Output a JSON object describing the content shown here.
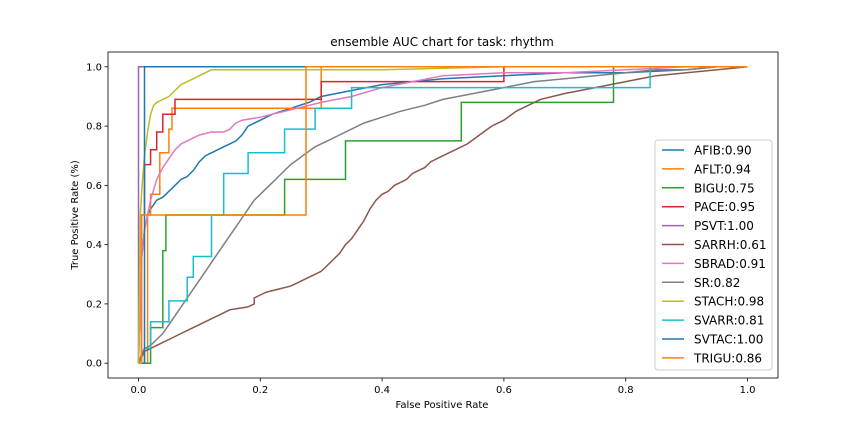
{
  "chart_data": {
    "type": "line",
    "title": "ensemble AUC chart for task: rhythm",
    "xlabel": "False Positive Rate",
    "ylabel": "True Positive Rate (%)",
    "xlim": [
      -0.05,
      1.05
    ],
    "ylim": [
      -0.05,
      1.05
    ],
    "xticks": [
      "0.0",
      "0.2",
      "0.4",
      "0.6",
      "0.8",
      "1.0"
    ],
    "yticks": [
      "0.0",
      "0.2",
      "0.4",
      "0.6",
      "0.8",
      "1.0"
    ],
    "grid": false,
    "legend_position": "lower right",
    "series": [
      {
        "name": "AFIB:0.90",
        "color": "#1f77b4",
        "points": [
          [
            0,
            0
          ],
          [
            0.005,
            0.35
          ],
          [
            0.01,
            0.45
          ],
          [
            0.015,
            0.5
          ],
          [
            0.02,
            0.52
          ],
          [
            0.03,
            0.55
          ],
          [
            0.04,
            0.56
          ],
          [
            0.05,
            0.58
          ],
          [
            0.06,
            0.6
          ],
          [
            0.07,
            0.62
          ],
          [
            0.08,
            0.63
          ],
          [
            0.09,
            0.65
          ],
          [
            0.1,
            0.68
          ],
          [
            0.11,
            0.7
          ],
          [
            0.12,
            0.71
          ],
          [
            0.13,
            0.72
          ],
          [
            0.14,
            0.73
          ],
          [
            0.15,
            0.74
          ],
          [
            0.16,
            0.75
          ],
          [
            0.17,
            0.77
          ],
          [
            0.18,
            0.8
          ],
          [
            0.2,
            0.82
          ],
          [
            0.22,
            0.84
          ],
          [
            0.25,
            0.86
          ],
          [
            0.28,
            0.88
          ],
          [
            0.3,
            0.9
          ],
          [
            0.35,
            0.92
          ],
          [
            0.4,
            0.94
          ],
          [
            0.5,
            0.96
          ],
          [
            0.6,
            0.97
          ],
          [
            0.7,
            0.98
          ],
          [
            0.8,
            0.98
          ],
          [
            0.9,
            0.99
          ],
          [
            0.95,
            1.0
          ],
          [
            1.0,
            1.0
          ]
        ]
      },
      {
        "name": "AFLT:0.94",
        "color": "#ff7f0e",
        "points": [
          [
            0,
            0
          ],
          [
            0.015,
            0.0
          ],
          [
            0.015,
            0.5
          ],
          [
            0.02,
            0.5
          ],
          [
            0.02,
            0.57
          ],
          [
            0.035,
            0.57
          ],
          [
            0.035,
            0.71
          ],
          [
            0.05,
            0.71
          ],
          [
            0.05,
            0.79
          ],
          [
            0.055,
            0.79
          ],
          [
            0.055,
            0.86
          ],
          [
            0.3,
            0.86
          ],
          [
            0.3,
            1.0
          ],
          [
            1.0,
            1.0
          ]
        ]
      },
      {
        "name": "BIGU:0.75",
        "color": "#2ca02c",
        "points": [
          [
            0,
            0
          ],
          [
            0.02,
            0.0
          ],
          [
            0.02,
            0.12
          ],
          [
            0.04,
            0.12
          ],
          [
            0.04,
            0.38
          ],
          [
            0.045,
            0.38
          ],
          [
            0.045,
            0.5
          ],
          [
            0.24,
            0.5
          ],
          [
            0.24,
            0.62
          ],
          [
            0.34,
            0.62
          ],
          [
            0.34,
            0.75
          ],
          [
            0.53,
            0.75
          ],
          [
            0.53,
            0.88
          ],
          [
            0.78,
            0.88
          ],
          [
            0.78,
            1.0
          ],
          [
            1.0,
            1.0
          ]
        ]
      },
      {
        "name": "PACE:0.95",
        "color": "#d62728",
        "points": [
          [
            0,
            0
          ],
          [
            0.005,
            0.0
          ],
          [
            0.005,
            0.5
          ],
          [
            0.01,
            0.5
          ],
          [
            0.01,
            0.67
          ],
          [
            0.02,
            0.67
          ],
          [
            0.02,
            0.72
          ],
          [
            0.03,
            0.72
          ],
          [
            0.03,
            0.78
          ],
          [
            0.04,
            0.78
          ],
          [
            0.04,
            0.84
          ],
          [
            0.06,
            0.84
          ],
          [
            0.06,
            0.89
          ],
          [
            0.3,
            0.89
          ],
          [
            0.3,
            0.95
          ],
          [
            0.6,
            0.95
          ],
          [
            0.6,
            1.0
          ],
          [
            1.0,
            1.0
          ]
        ]
      },
      {
        "name": "PSVT:1.00",
        "color": "#9467bd",
        "points": [
          [
            0,
            0
          ],
          [
            0,
            1.0
          ],
          [
            1.0,
            1.0
          ]
        ]
      },
      {
        "name": "SARRH:0.61",
        "color": "#8c564b",
        "points": [
          [
            0,
            0
          ],
          [
            0.005,
            0.02
          ],
          [
            0.01,
            0.04
          ],
          [
            0.02,
            0.05
          ],
          [
            0.03,
            0.06
          ],
          [
            0.04,
            0.07
          ],
          [
            0.05,
            0.08
          ],
          [
            0.06,
            0.09
          ],
          [
            0.07,
            0.1
          ],
          [
            0.09,
            0.12
          ],
          [
            0.11,
            0.14
          ],
          [
            0.12,
            0.15
          ],
          [
            0.13,
            0.16
          ],
          [
            0.14,
            0.17
          ],
          [
            0.15,
            0.18
          ],
          [
            0.18,
            0.19
          ],
          [
            0.19,
            0.2
          ],
          [
            0.19,
            0.22
          ],
          [
            0.2,
            0.23
          ],
          [
            0.21,
            0.24
          ],
          [
            0.23,
            0.25
          ],
          [
            0.25,
            0.26
          ],
          [
            0.26,
            0.27
          ],
          [
            0.27,
            0.28
          ],
          [
            0.28,
            0.29
          ],
          [
            0.29,
            0.3
          ],
          [
            0.3,
            0.31
          ],
          [
            0.31,
            0.33
          ],
          [
            0.32,
            0.35
          ],
          [
            0.33,
            0.37
          ],
          [
            0.34,
            0.4
          ],
          [
            0.35,
            0.42
          ],
          [
            0.36,
            0.45
          ],
          [
            0.37,
            0.48
          ],
          [
            0.38,
            0.52
          ],
          [
            0.39,
            0.55
          ],
          [
            0.4,
            0.57
          ],
          [
            0.41,
            0.58
          ],
          [
            0.42,
            0.6
          ],
          [
            0.43,
            0.61
          ],
          [
            0.44,
            0.62
          ],
          [
            0.45,
            0.64
          ],
          [
            0.47,
            0.66
          ],
          [
            0.48,
            0.68
          ],
          [
            0.5,
            0.7
          ],
          [
            0.52,
            0.72
          ],
          [
            0.54,
            0.74
          ],
          [
            0.56,
            0.77
          ],
          [
            0.58,
            0.8
          ],
          [
            0.6,
            0.82
          ],
          [
            0.62,
            0.85
          ],
          [
            0.64,
            0.87
          ],
          [
            0.66,
            0.89
          ],
          [
            0.7,
            0.91
          ],
          [
            0.75,
            0.93
          ],
          [
            0.8,
            0.95
          ],
          [
            0.85,
            0.97
          ],
          [
            0.9,
            0.98
          ],
          [
            0.95,
            0.99
          ],
          [
            1.0,
            1.0
          ]
        ]
      },
      {
        "name": "SBRAD:0.91",
        "color": "#e377c2",
        "points": [
          [
            0,
            0
          ],
          [
            0.005,
            0.35
          ],
          [
            0.01,
            0.45
          ],
          [
            0.02,
            0.55
          ],
          [
            0.03,
            0.62
          ],
          [
            0.04,
            0.66
          ],
          [
            0.05,
            0.69
          ],
          [
            0.06,
            0.72
          ],
          [
            0.07,
            0.74
          ],
          [
            0.08,
            0.75
          ],
          [
            0.09,
            0.76
          ],
          [
            0.1,
            0.77
          ],
          [
            0.12,
            0.78
          ],
          [
            0.14,
            0.78
          ],
          [
            0.15,
            0.79
          ],
          [
            0.16,
            0.81
          ],
          [
            0.17,
            0.82
          ],
          [
            0.2,
            0.83
          ],
          [
            0.22,
            0.84
          ],
          [
            0.24,
            0.85
          ],
          [
            0.26,
            0.86
          ],
          [
            0.3,
            0.88
          ],
          [
            0.35,
            0.9
          ],
          [
            0.4,
            0.93
          ],
          [
            0.5,
            0.97
          ],
          [
            0.6,
            0.98
          ],
          [
            0.7,
            0.98
          ],
          [
            0.8,
            0.99
          ],
          [
            0.9,
            1.0
          ],
          [
            1.0,
            1.0
          ]
        ]
      },
      {
        "name": "SR:0.82",
        "color": "#7f7f7f",
        "points": [
          [
            0,
            0
          ],
          [
            0.005,
            0.03
          ],
          [
            0.01,
            0.05
          ],
          [
            0.02,
            0.06
          ],
          [
            0.03,
            0.08
          ],
          [
            0.04,
            0.1
          ],
          [
            0.05,
            0.13
          ],
          [
            0.06,
            0.16
          ],
          [
            0.07,
            0.19
          ],
          [
            0.08,
            0.22
          ],
          [
            0.09,
            0.25
          ],
          [
            0.1,
            0.28
          ],
          [
            0.11,
            0.31
          ],
          [
            0.12,
            0.34
          ],
          [
            0.13,
            0.37
          ],
          [
            0.14,
            0.4
          ],
          [
            0.15,
            0.43
          ],
          [
            0.16,
            0.46
          ],
          [
            0.17,
            0.49
          ],
          [
            0.18,
            0.52
          ],
          [
            0.19,
            0.55
          ],
          [
            0.2,
            0.57
          ],
          [
            0.21,
            0.59
          ],
          [
            0.22,
            0.61
          ],
          [
            0.23,
            0.63
          ],
          [
            0.24,
            0.65
          ],
          [
            0.25,
            0.67
          ],
          [
            0.27,
            0.7
          ],
          [
            0.29,
            0.73
          ],
          [
            0.31,
            0.75
          ],
          [
            0.33,
            0.77
          ],
          [
            0.35,
            0.79
          ],
          [
            0.37,
            0.81
          ],
          [
            0.4,
            0.83
          ],
          [
            0.43,
            0.85
          ],
          [
            0.47,
            0.87
          ],
          [
            0.5,
            0.89
          ],
          [
            0.55,
            0.91
          ],
          [
            0.6,
            0.93
          ],
          [
            0.65,
            0.95
          ],
          [
            0.7,
            0.96
          ],
          [
            0.75,
            0.97
          ],
          [
            0.8,
            0.98
          ],
          [
            0.85,
            0.99
          ],
          [
            0.9,
            0.99
          ],
          [
            0.95,
            1.0
          ],
          [
            1.0,
            1.0
          ]
        ]
      },
      {
        "name": "STACH:0.98",
        "color": "#bcbd22",
        "points": [
          [
            0,
            0
          ],
          [
            0.003,
            0.5
          ],
          [
            0.006,
            0.6
          ],
          [
            0.01,
            0.7
          ],
          [
            0.015,
            0.78
          ],
          [
            0.02,
            0.84
          ],
          [
            0.025,
            0.87
          ],
          [
            0.03,
            0.88
          ],
          [
            0.04,
            0.89
          ],
          [
            0.05,
            0.9
          ],
          [
            0.06,
            0.92
          ],
          [
            0.07,
            0.94
          ],
          [
            0.08,
            0.95
          ],
          [
            0.09,
            0.96
          ],
          [
            0.1,
            0.97
          ],
          [
            0.11,
            0.98
          ],
          [
            0.12,
            0.99
          ],
          [
            0.2,
            0.99
          ],
          [
            0.4,
            0.99
          ],
          [
            0.6,
            1.0
          ],
          [
            1.0,
            1.0
          ]
        ]
      },
      {
        "name": "SVARR:0.81",
        "color": "#17becf",
        "points": [
          [
            0,
            0
          ],
          [
            0.01,
            0.0
          ],
          [
            0.01,
            0.05
          ],
          [
            0.02,
            0.05
          ],
          [
            0.02,
            0.14
          ],
          [
            0.05,
            0.14
          ],
          [
            0.05,
            0.21
          ],
          [
            0.08,
            0.21
          ],
          [
            0.08,
            0.29
          ],
          [
            0.09,
            0.29
          ],
          [
            0.09,
            0.36
          ],
          [
            0.12,
            0.36
          ],
          [
            0.12,
            0.5
          ],
          [
            0.14,
            0.5
          ],
          [
            0.14,
            0.64
          ],
          [
            0.18,
            0.64
          ],
          [
            0.18,
            0.71
          ],
          [
            0.24,
            0.71
          ],
          [
            0.24,
            0.79
          ],
          [
            0.29,
            0.79
          ],
          [
            0.29,
            0.86
          ],
          [
            0.35,
            0.86
          ],
          [
            0.35,
            0.93
          ],
          [
            0.84,
            0.93
          ],
          [
            0.84,
            1.0
          ],
          [
            1.0,
            1.0
          ]
        ]
      },
      {
        "name": "SVTAC:1.00",
        "color": "#1f77b4",
        "points": [
          [
            0,
            0
          ],
          [
            0.01,
            0.0
          ],
          [
            0.01,
            1.0
          ],
          [
            1.0,
            1.0
          ]
        ]
      },
      {
        "name": "TRIGU:0.86",
        "color": "#ff7f0e",
        "points": [
          [
            0,
            0
          ],
          [
            0.005,
            0.0
          ],
          [
            0.005,
            0.5
          ],
          [
            0.275,
            0.5
          ],
          [
            0.275,
            1.0
          ],
          [
            1.0,
            1.0
          ]
        ]
      }
    ]
  }
}
